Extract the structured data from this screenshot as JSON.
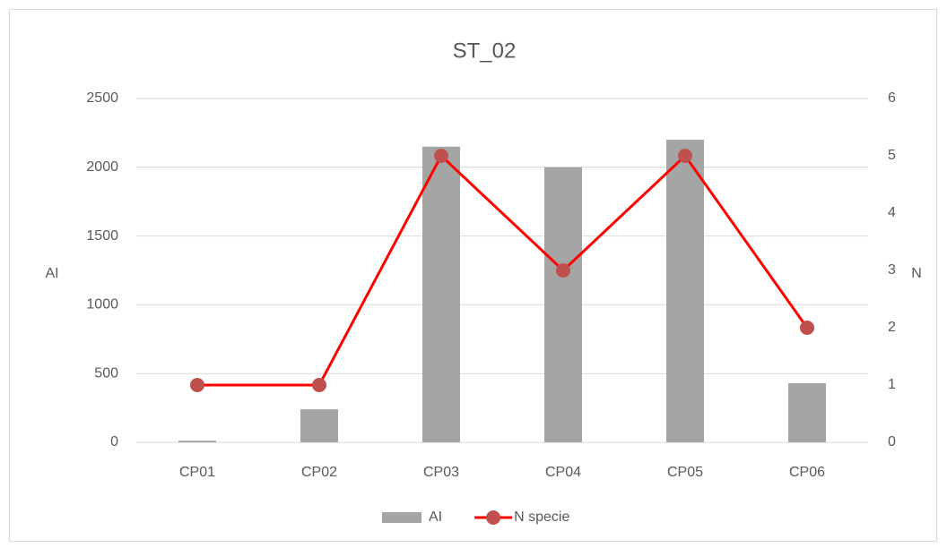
{
  "chart_data": {
    "type": "bar",
    "title": "ST_02",
    "y_label": "AI",
    "y2_label": "N",
    "categories": [
      "CP01",
      "CP02",
      "CP03",
      "CP04",
      "CP05",
      "CP06"
    ],
    "series": [
      {
        "name": "AI",
        "type": "bar",
        "color": "#a5a5a5",
        "values": [
          12,
          240,
          2150,
          2000,
          2200,
          430
        ]
      },
      {
        "name": "N specie",
        "type": "line",
        "axis": "y2",
        "color": "#ff0000",
        "marker_color": "#c0504d",
        "values": [
          1,
          1,
          5,
          3,
          5,
          2
        ]
      }
    ],
    "ylim": [
      0,
      2500
    ],
    "yticks": [
      0,
      500,
      1000,
      1500,
      2000,
      2500
    ],
    "y2lim": [
      0,
      6
    ],
    "y2ticks": [
      0,
      1,
      2,
      3,
      4,
      5,
      6
    ],
    "grid": true,
    "legend": "bottom"
  }
}
